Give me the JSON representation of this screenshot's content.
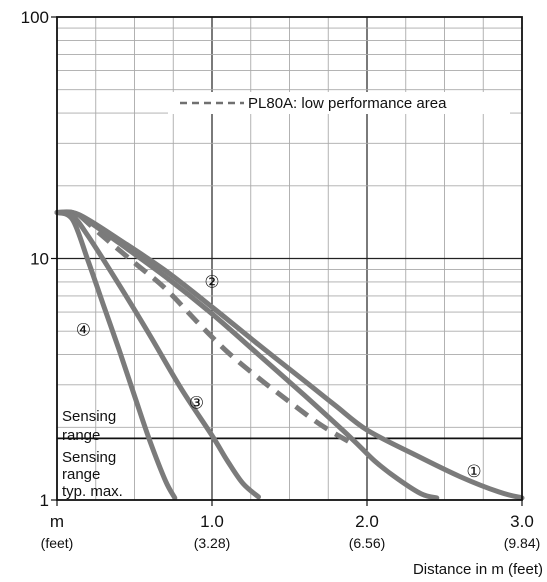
{
  "chart_data": {
    "type": "line",
    "yscale": "log",
    "ylim": [
      1,
      100
    ],
    "xlim": [
      0,
      3.0
    ],
    "y_ticks": [
      {
        "value": 100,
        "label": "100"
      },
      {
        "value": 10,
        "label": "10"
      },
      {
        "value": 1,
        "label": "1"
      }
    ],
    "x_ticks": [
      {
        "value": 0,
        "label": "m",
        "sublabel": "(feet)"
      },
      {
        "value": 1.0,
        "label": "1.0",
        "sublabel": "(3.28)"
      },
      {
        "value": 2.0,
        "label": "2.0",
        "sublabel": "(6.56)"
      },
      {
        "value": 3.0,
        "label": "3.0",
        "sublabel": "(9.84)"
      }
    ],
    "xlabel": "Distance in m (feet)",
    "grid": true,
    "legend": {
      "text": "PL80A: low performance area",
      "style": "dashed",
      "placement": "top-right"
    },
    "threshold": {
      "y": 1.8
    },
    "region_labels": [
      {
        "text": "Sensing",
        "line": 1
      },
      {
        "text": "range",
        "line": 2
      },
      {
        "text": "Sensing",
        "line": 3
      },
      {
        "text": "range",
        "line": 4
      },
      {
        "text": "typ. max.",
        "line": 5
      }
    ],
    "series": [
      {
        "name": "①",
        "style": "solid",
        "x": [
          0,
          0.1,
          0.2,
          0.4,
          0.7,
          1.0,
          1.3,
          1.6,
          1.8,
          2.0,
          2.3,
          2.6,
          2.85,
          3.0
        ],
        "y": [
          15.5,
          15.5,
          14.5,
          12.0,
          8.9,
          6.3,
          4.4,
          3.1,
          2.45,
          1.95,
          1.55,
          1.25,
          1.08,
          1.02
        ]
      },
      {
        "name": "②",
        "style": "solid",
        "x": [
          0,
          0.1,
          0.2,
          0.4,
          0.7,
          1.0,
          1.3,
          1.6,
          1.9,
          2.05,
          2.2,
          2.35,
          2.45
        ],
        "y": [
          15.5,
          15.5,
          14.3,
          11.6,
          8.4,
          5.9,
          4.0,
          2.7,
          1.8,
          1.45,
          1.22,
          1.06,
          1.02
        ]
      },
      {
        "name": "PL80A",
        "style": "dashed",
        "x": [
          0.15,
          0.3,
          0.5,
          0.7,
          0.9,
          1.1,
          1.3,
          1.5,
          1.7,
          1.9
        ],
        "y": [
          15.0,
          12.3,
          9.6,
          7.5,
          5.5,
          4.1,
          3.2,
          2.55,
          2.05,
          1.72
        ]
      },
      {
        "name": "③",
        "style": "solid",
        "x": [
          0,
          0.1,
          0.2,
          0.4,
          0.6,
          0.8,
          1.0,
          1.1,
          1.2,
          1.3
        ],
        "y": [
          15.5,
          15.0,
          12.4,
          7.8,
          4.8,
          2.9,
          1.85,
          1.45,
          1.17,
          1.03
        ]
      },
      {
        "name": "④",
        "style": "solid",
        "x": [
          0,
          0.1,
          0.2,
          0.3,
          0.4,
          0.5,
          0.6,
          0.7,
          0.76
        ],
        "y": [
          15.5,
          14.5,
          9.8,
          6.4,
          4.2,
          2.7,
          1.75,
          1.2,
          1.02
        ]
      }
    ],
    "series_labels": [
      {
        "text": "①",
        "x": 2.69,
        "y": 1.3
      },
      {
        "text": "②",
        "x": 1.0,
        "y": 7.9
      },
      {
        "text": "③",
        "x": 0.9,
        "y": 2.5
      },
      {
        "text": "④",
        "x": 0.17,
        "y": 5.0
      }
    ]
  }
}
